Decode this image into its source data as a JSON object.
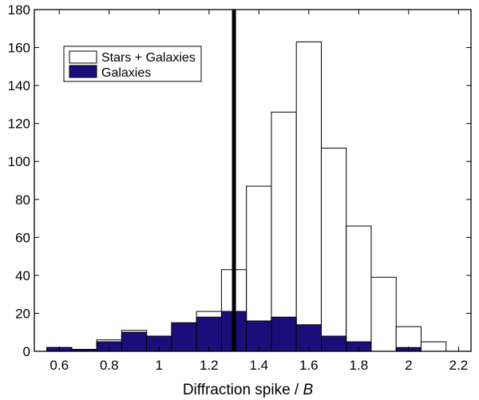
{
  "chart_data": {
    "type": "bar",
    "title": "",
    "xlabel": "Diffraction spike / ",
    "xlabel_italic": "B",
    "ylabel": "",
    "xlim": [
      0.5,
      2.25
    ],
    "ylim": [
      0,
      180
    ],
    "bin_width": 0.1,
    "bin_centers": [
      0.6,
      0.7,
      0.8,
      0.9,
      1.0,
      1.1,
      1.2,
      1.3,
      1.4,
      1.5,
      1.6,
      1.7,
      1.8,
      1.9,
      2.0,
      2.1
    ],
    "series": [
      {
        "name": "Stars + Galaxies",
        "values": [
          2,
          1,
          6,
          11,
          8,
          15,
          21,
          43,
          87,
          126,
          163,
          107,
          66,
          39,
          13,
          5
        ],
        "color": "#ffffff"
      },
      {
        "name": "Galaxies",
        "values": [
          2,
          1,
          5,
          10,
          8,
          15,
          18,
          21,
          16,
          18,
          14,
          8,
          5,
          0,
          2,
          0
        ],
        "color": "#1a0f7a"
      }
    ],
    "x_ticks": [
      "0.6",
      "0.8",
      "1",
      "1.2",
      "1.4",
      "1.6",
      "1.8",
      "2",
      "2.2"
    ],
    "x_tick_values": [
      0.6,
      0.8,
      1.0,
      1.2,
      1.4,
      1.6,
      1.8,
      2.0,
      2.2
    ],
    "y_ticks": [
      "0",
      "20",
      "40",
      "60",
      "80",
      "100",
      "120",
      "140",
      "160",
      "180"
    ],
    "y_tick_values": [
      0,
      20,
      40,
      60,
      80,
      100,
      120,
      140,
      160,
      180
    ],
    "vertical_line": {
      "x": 1.3
    },
    "grid": false,
    "legend_position": "top-left"
  }
}
